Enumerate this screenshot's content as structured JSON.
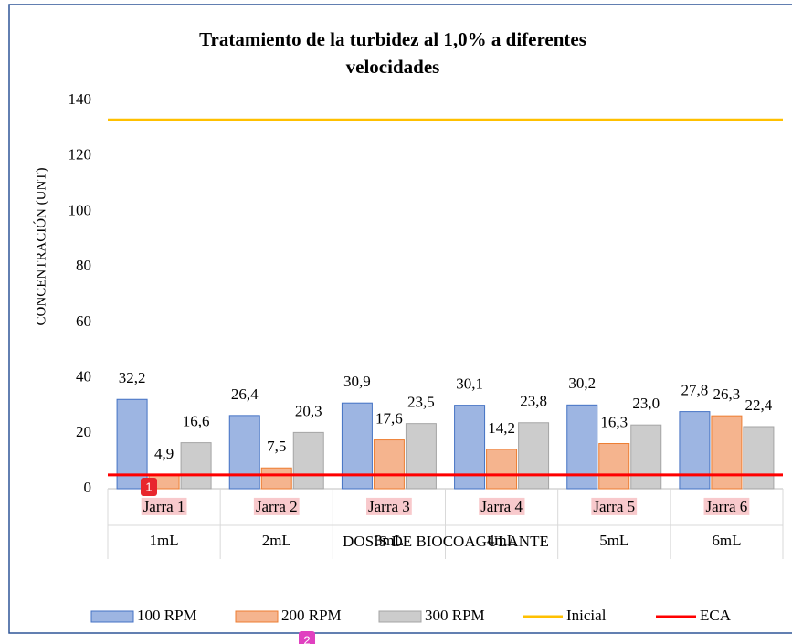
{
  "chart_data": {
    "type": "bar",
    "title": [
      "Tratamiento de la turbidez al 1,0% a diferentes",
      "velocidades"
    ],
    "y_label": "CONCENTRACIÓN  (UNT)",
    "x_label": "DOSIS DE BIOCOAGULANTE",
    "categories": [
      "Jarra 1",
      "Jarra 2",
      "Jarra 3",
      "Jarra 4",
      "Jarra 5",
      "Jarra 6"
    ],
    "subcategories": [
      "1mL",
      "2mL",
      "3mL",
      "4mL",
      "5mL",
      "6mL"
    ],
    "series": [
      {
        "name": "100 RPM",
        "color": "#9db5e2",
        "values": [
          32.2,
          26.4,
          30.9,
          30.1,
          30.2,
          27.8
        ],
        "value_labels": [
          "32,2",
          "26,4",
          "30,9",
          "30,1",
          "30,2",
          "27,8"
        ]
      },
      {
        "name": "200 RPM",
        "color": "#f5b48e",
        "values": [
          4.9,
          7.5,
          17.6,
          14.2,
          16.3,
          26.3
        ],
        "value_labels": [
          "4,9",
          "7,5",
          "17,6",
          "14,2",
          "16,3",
          "26,3"
        ]
      },
      {
        "name": "300 RPM",
        "color": "#cccccc",
        "values": [
          16.6,
          20.3,
          23.5,
          23.8,
          23.0,
          22.4
        ],
        "value_labels": [
          "16,6",
          "20,3",
          "23,5",
          "23,8",
          "23,0",
          "22,4"
        ]
      }
    ],
    "reference_lines": [
      {
        "name": "Inicial",
        "color": "#ffc000",
        "value": 133
      },
      {
        "name": "ECA",
        "color": "#ff0000",
        "value": 5
      }
    ],
    "ylim": [
      0,
      140
    ],
    "yticks": [
      0,
      20,
      40,
      60,
      80,
      100,
      120,
      140
    ],
    "markers": [
      "1",
      "2"
    ]
  }
}
